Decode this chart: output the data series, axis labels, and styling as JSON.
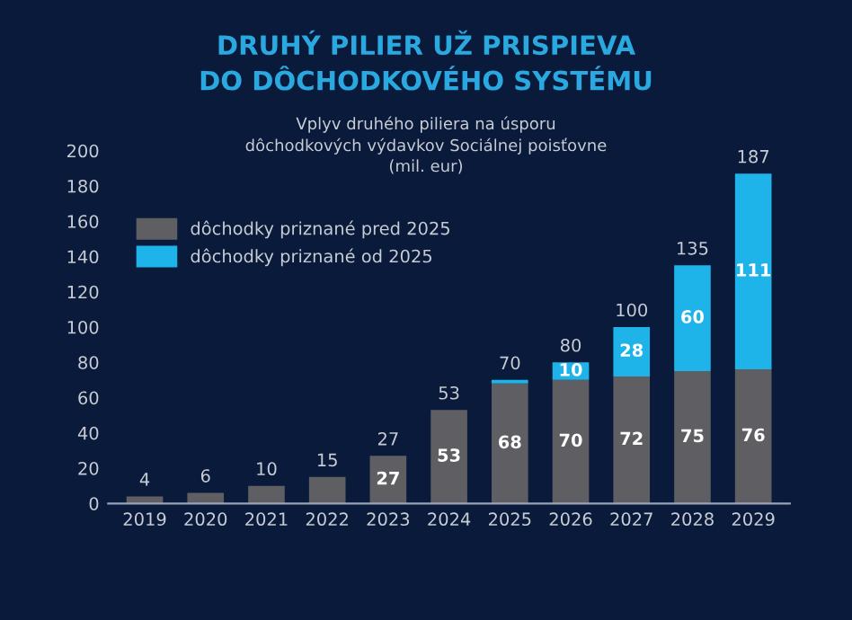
{
  "chart_data": {
    "type": "bar",
    "stacked": true,
    "title": "DRUHÝ PILIER UŽ PRISPIEVA\nDO DÔCHODKOVÉHO SYSTÉMU",
    "subtitle": "Vplyv druhého piliera na úsporu\ndôchodkových výdavkov Sociálnej poisťovne\n(mil. eur)",
    "categories": [
      "2019",
      "2020",
      "2021",
      "2022",
      "2023",
      "2024",
      "2025",
      "2026",
      "2027",
      "2028",
      "2029"
    ],
    "series": [
      {
        "name": "dôchodky priznané pred 2025",
        "color": "#5f5f63",
        "values": [
          4,
          6,
          10,
          15,
          27,
          53,
          68,
          70,
          72,
          75,
          76
        ],
        "value_labels": [
          null,
          null,
          null,
          null,
          "27",
          "53",
          "68",
          "70",
          "72",
          "75",
          "76"
        ]
      },
      {
        "name": "dôchodky priznané od 2025",
        "color": "#1eb4ea",
        "values": [
          null,
          null,
          null,
          null,
          null,
          null,
          2,
          10,
          28,
          60,
          111
        ],
        "value_labels": [
          null,
          null,
          null,
          null,
          null,
          null,
          null,
          "10",
          "28",
          "60",
          "111"
        ]
      }
    ],
    "totals": [
      "4",
      "6",
      "10",
      "15",
      "27",
      "53",
      "70",
      "80",
      "100",
      "135",
      "187"
    ],
    "ylim": [
      0,
      200
    ],
    "yticks": [
      0,
      20,
      40,
      60,
      80,
      100,
      120,
      140,
      160,
      180,
      200
    ],
    "grid": false,
    "legend": "top left"
  }
}
